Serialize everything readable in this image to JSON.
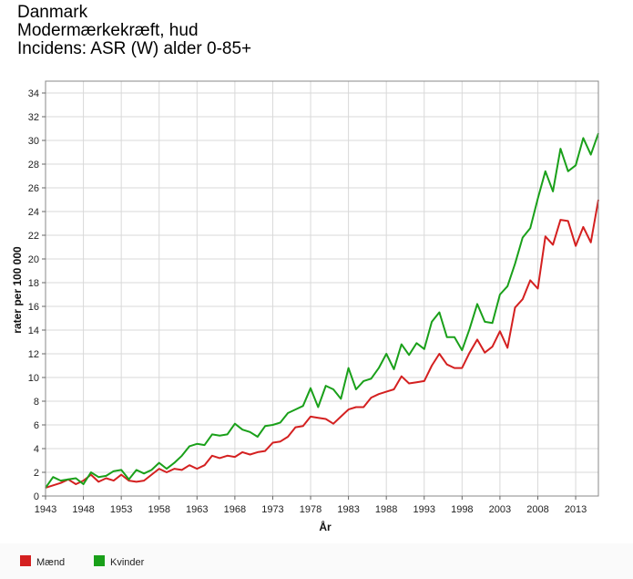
{
  "title": {
    "line1": "Danmark",
    "line2": "Modermærkekræft, hud",
    "line3": "Incidens: ASR (W) alder 0-85+"
  },
  "chart_data": {
    "type": "line",
    "xlabel": "År",
    "ylabel": "rater per 100 000",
    "xlim": [
      1943,
      2016
    ],
    "ylim": [
      0,
      35
    ],
    "x_ticks": [
      1943,
      1948,
      1953,
      1958,
      1963,
      1968,
      1973,
      1978,
      1983,
      1988,
      1993,
      1998,
      2003,
      2008,
      2013
    ],
    "y_ticks": [
      0,
      2,
      4,
      6,
      8,
      10,
      12,
      14,
      16,
      18,
      20,
      22,
      24,
      26,
      28,
      30,
      32,
      34
    ],
    "grid": true,
    "legend_position": "bottom-left",
    "x": [
      1943,
      1944,
      1945,
      1946,
      1947,
      1948,
      1949,
      1950,
      1951,
      1952,
      1953,
      1954,
      1955,
      1956,
      1957,
      1958,
      1959,
      1960,
      1961,
      1962,
      1963,
      1964,
      1965,
      1966,
      1967,
      1968,
      1969,
      1970,
      1971,
      1972,
      1973,
      1974,
      1975,
      1976,
      1977,
      1978,
      1979,
      1980,
      1981,
      1982,
      1983,
      1984,
      1985,
      1986,
      1987,
      1988,
      1989,
      1990,
      1991,
      1992,
      1993,
      1994,
      1995,
      1996,
      1997,
      1998,
      1999,
      2000,
      2001,
      2002,
      2003,
      2004,
      2005,
      2006,
      2007,
      2008,
      2009,
      2010,
      2011,
      2012,
      2013,
      2014,
      2015,
      2016
    ],
    "series": [
      {
        "name": "Mænd",
        "color": "#d42020",
        "values": [
          0.7,
          0.9,
          1.1,
          1.4,
          1.0,
          1.3,
          1.8,
          1.2,
          1.5,
          1.3,
          1.8,
          1.3,
          1.2,
          1.3,
          1.8,
          2.3,
          2.0,
          2.3,
          2.2,
          2.6,
          2.3,
          2.6,
          3.4,
          3.2,
          3.4,
          3.3,
          3.7,
          3.5,
          3.7,
          3.8,
          4.5,
          4.6,
          5.0,
          5.8,
          5.9,
          6.7,
          6.6,
          6.5,
          6.1,
          6.7,
          7.3,
          7.5,
          7.5,
          8.3,
          8.6,
          8.8,
          9.0,
          10.1,
          9.5,
          9.6,
          9.7,
          11.0,
          12.0,
          11.1,
          10.8,
          10.8,
          12.1,
          13.2,
          12.1,
          12.6,
          13.9,
          12.5,
          15.9,
          16.6,
          18.2,
          17.5,
          21.9,
          21.2,
          23.3,
          23.2,
          21.1,
          22.7,
          21.4,
          25.0
        ]
      },
      {
        "name": "Kvinder",
        "color": "#1aa01a",
        "values": [
          0.7,
          1.6,
          1.3,
          1.4,
          1.5,
          1.0,
          2.0,
          1.6,
          1.7,
          2.1,
          2.2,
          1.4,
          2.2,
          1.9,
          2.2,
          2.8,
          2.3,
          2.8,
          3.4,
          4.2,
          4.4,
          4.3,
          5.2,
          5.1,
          5.2,
          6.1,
          5.6,
          5.4,
          5.0,
          5.9,
          6.0,
          6.2,
          7.0,
          7.3,
          7.6,
          9.1,
          7.5,
          9.3,
          9.0,
          8.2,
          10.8,
          9.0,
          9.7,
          9.9,
          10.8,
          12.0,
          10.7,
          12.8,
          11.9,
          12.9,
          12.4,
          14.7,
          15.5,
          13.4,
          13.4,
          12.3,
          14.1,
          16.2,
          14.7,
          14.6,
          17.0,
          17.7,
          19.6,
          21.8,
          22.6,
          25.1,
          27.4,
          25.7,
          29.3,
          27.4,
          27.9,
          30.2,
          28.8,
          30.6
        ]
      }
    ]
  }
}
